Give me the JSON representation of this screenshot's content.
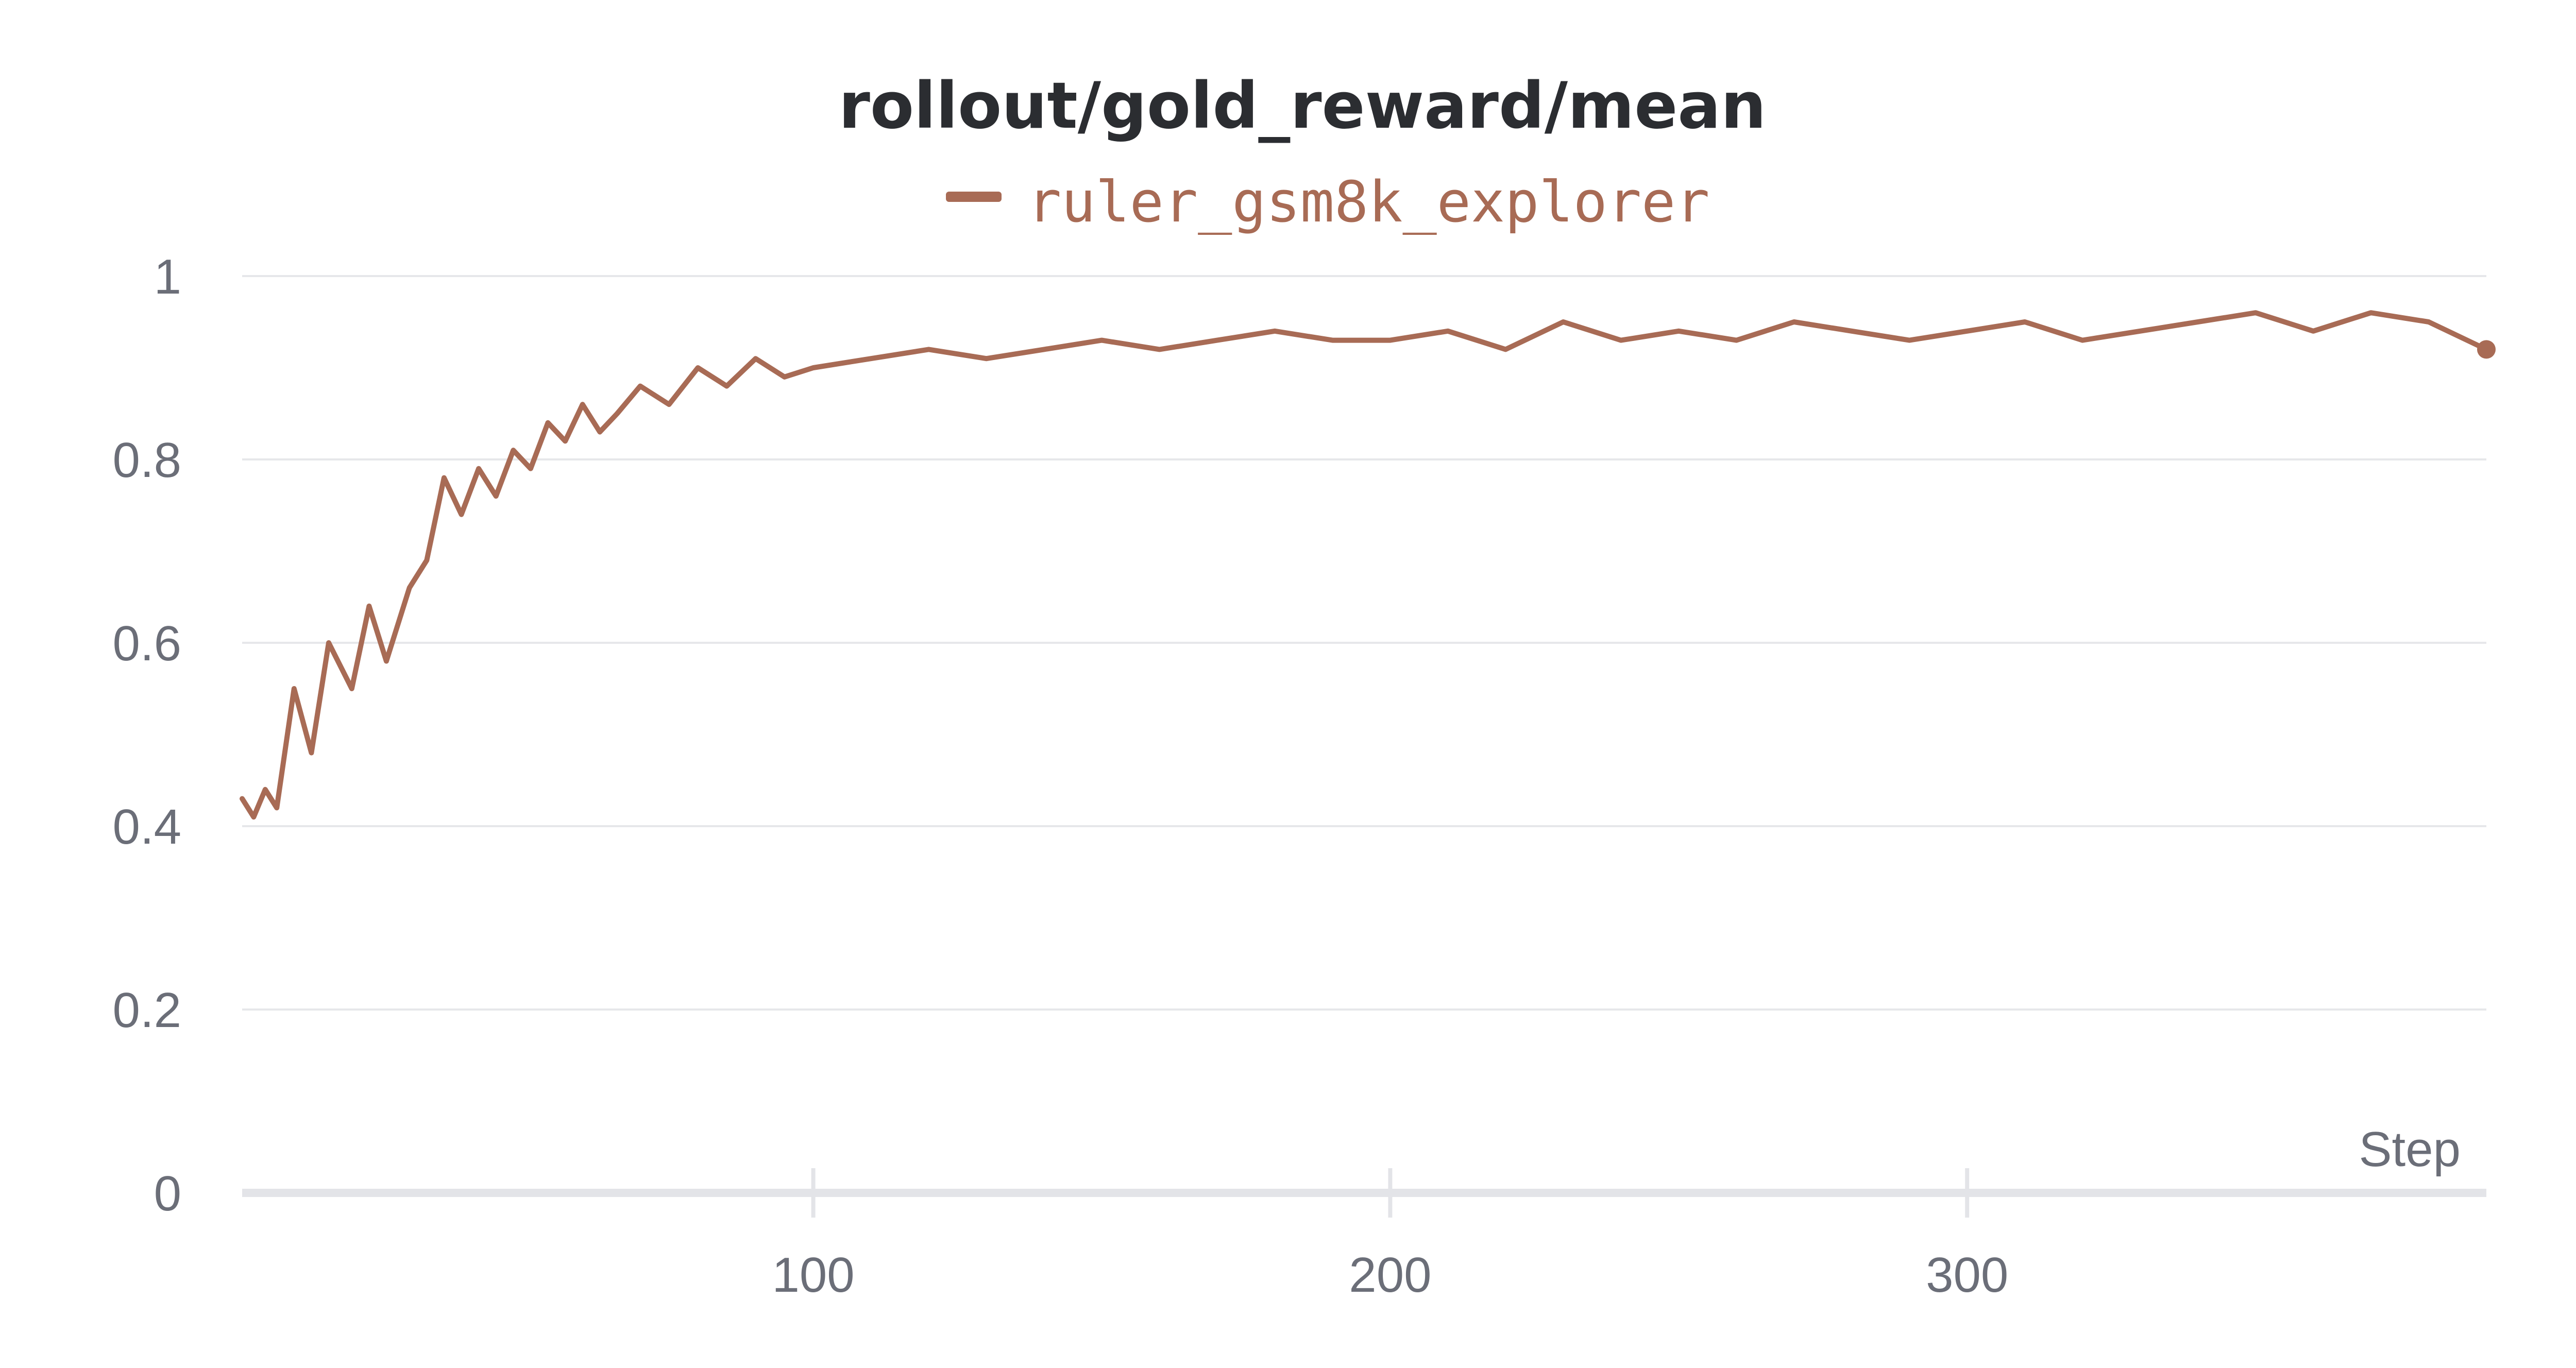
{
  "chart_data": {
    "type": "line",
    "title": "rollout/gold_reward/mean",
    "xlabel": "Step",
    "ylabel": "",
    "xlim": [
      1,
      390
    ],
    "ylim": [
      0,
      1.0
    ],
    "x_ticks": [
      100,
      200,
      300
    ],
    "x_tick_labels": [
      "100",
      "200",
      "300"
    ],
    "y_ticks": [
      0,
      0.2,
      0.4,
      0.6,
      0.8,
      1
    ],
    "y_tick_labels": [
      "0",
      "0.2",
      "0.4",
      "0.6",
      "0.8",
      "1"
    ],
    "grid": true,
    "legend_position": "top-center",
    "series": [
      {
        "name": "ruler_gsm8k_explorer",
        "color": "#a86b55",
        "x": [
          1,
          3,
          5,
          7,
          10,
          13,
          16,
          20,
          23,
          26,
          30,
          33,
          36,
          39,
          42,
          45,
          48,
          51,
          54,
          57,
          60,
          63,
          66,
          70,
          75,
          80,
          85,
          90,
          95,
          100,
          110,
          120,
          130,
          140,
          150,
          160,
          170,
          180,
          190,
          200,
          210,
          220,
          230,
          240,
          250,
          260,
          270,
          280,
          290,
          300,
          310,
          320,
          330,
          340,
          350,
          360,
          370,
          380,
          390
        ],
        "y": [
          0.43,
          0.41,
          0.44,
          0.42,
          0.55,
          0.48,
          0.6,
          0.55,
          0.64,
          0.58,
          0.66,
          0.69,
          0.78,
          0.74,
          0.79,
          0.76,
          0.81,
          0.79,
          0.84,
          0.82,
          0.86,
          0.83,
          0.85,
          0.88,
          0.86,
          0.9,
          0.88,
          0.91,
          0.89,
          0.9,
          0.91,
          0.92,
          0.91,
          0.92,
          0.93,
          0.92,
          0.93,
          0.94,
          0.93,
          0.93,
          0.94,
          0.92,
          0.95,
          0.93,
          0.94,
          0.93,
          0.95,
          0.94,
          0.93,
          0.94,
          0.95,
          0.93,
          0.94,
          0.95,
          0.96,
          0.94,
          0.96,
          0.95,
          0.92
        ]
      }
    ],
    "end_marker": true
  }
}
